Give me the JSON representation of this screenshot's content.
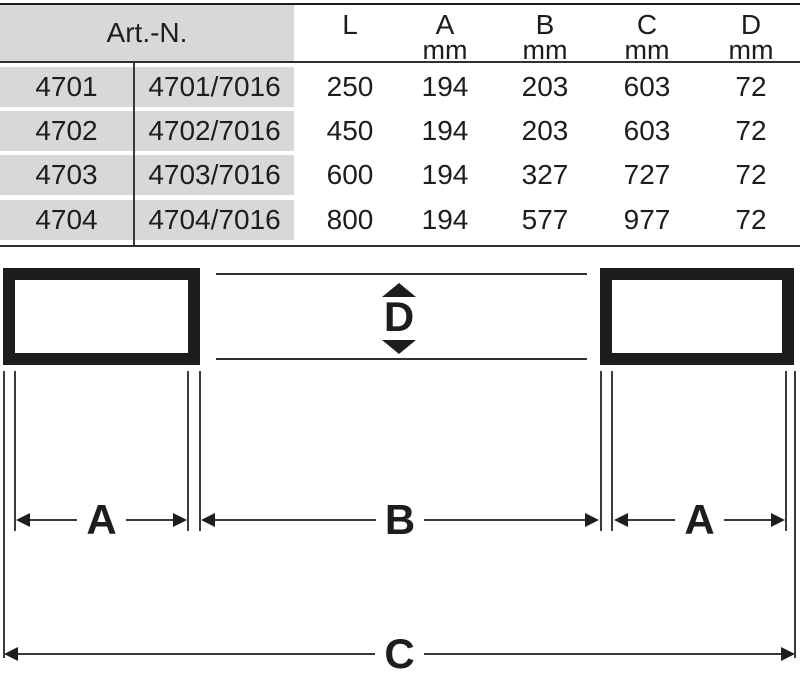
{
  "table": {
    "header": {
      "art_label": "Art.-N.",
      "cols": [
        {
          "label": "L",
          "unit": ""
        },
        {
          "label": "A",
          "unit": "mm"
        },
        {
          "label": "B",
          "unit": "mm"
        },
        {
          "label": "C",
          "unit": "mm"
        },
        {
          "label": "D",
          "unit": "mm"
        }
      ]
    },
    "rows": [
      {
        "cells": [
          "4701",
          "4701/7016",
          "250",
          "194",
          "203",
          "603",
          "72"
        ]
      },
      {
        "cells": [
          "4702",
          "4702/7016",
          "450",
          "194",
          "203",
          "603",
          "72"
        ]
      },
      {
        "cells": [
          "4703",
          "4703/7016",
          "600",
          "194",
          "327",
          "727",
          "72"
        ]
      },
      {
        "cells": [
          "4704",
          "4704/7016",
          "800",
          "194",
          "577",
          "977",
          "72"
        ]
      }
    ]
  },
  "diagram": {
    "labels": {
      "a_left": "A",
      "b": "B",
      "a_right": "A",
      "c": "C",
      "d": "D"
    }
  },
  "colors": {
    "ink": "#1d1d1b",
    "line": "#3a3a38",
    "band": "#d8d8d8"
  }
}
